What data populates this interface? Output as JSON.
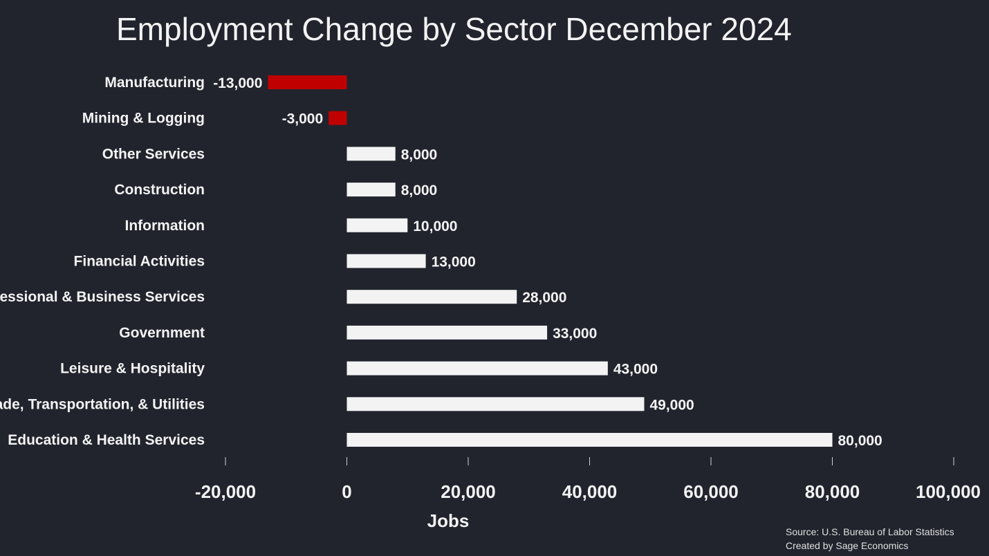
{
  "colors": {
    "background": "#21242d",
    "positive": "#f3f3f3",
    "negative": "#c00000"
  },
  "chart_data": {
    "type": "bar",
    "orientation": "horizontal",
    "title": "Employment Change by Sector December 2024",
    "xlabel": "Jobs",
    "ylabel": "",
    "categories": [
      "Manufacturing",
      "Mining & Logging",
      "Other Services",
      "Construction",
      "Information",
      "Financial Activities",
      "Professional & Business Services",
      "Government",
      "Leisure & Hospitality",
      "Trade, Transportation, & Utilities",
      "Education & Health Services"
    ],
    "values": [
      -13000,
      -3000,
      8000,
      8000,
      10000,
      13000,
      28000,
      33000,
      43000,
      49000,
      80000
    ],
    "value_labels": [
      "-13,000",
      "-3,000",
      "8,000",
      "8,000",
      "10,000",
      "13,000",
      "28,000",
      "33,000",
      "43,000",
      "49,000",
      "80,000"
    ],
    "xlim": [
      -20000,
      100000
    ],
    "xticks": [
      -20000,
      0,
      20000,
      40000,
      60000,
      80000,
      100000
    ],
    "xtick_labels": [
      "-20,000",
      "0",
      "20,000",
      "40,000",
      "60,000",
      "80,000",
      "100,000"
    ],
    "grid": false,
    "legend": "none"
  },
  "footer": {
    "source": "Source: U.S. Bureau of Labor Statistics",
    "credit": "Created by Sage Economics"
  }
}
